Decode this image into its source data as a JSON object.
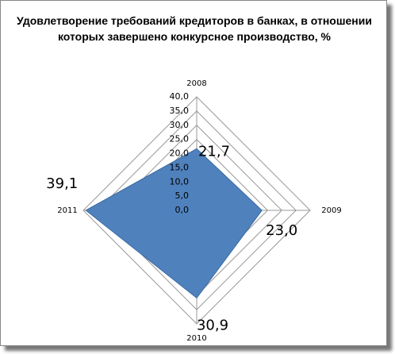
{
  "chart_data": {
    "type": "radar",
    "title": "Удовлетворение требований кредиторов в банках, в отношении которых завершено конкурсное производство, %",
    "categories": [
      "2008",
      "2009",
      "2010",
      "2011"
    ],
    "values": [
      21.7,
      23.0,
      30.9,
      39.1
    ],
    "value_labels": [
      "21,7",
      "23,0",
      "30,9",
      "39,1"
    ],
    "color": "#4f81bd",
    "ylim": [
      0,
      40
    ],
    "yticks": [
      {
        "value": 0,
        "label": "0,0"
      },
      {
        "value": 5,
        "label": "5,0"
      },
      {
        "value": 10,
        "label": "10,0"
      },
      {
        "value": 15,
        "label": "15,0"
      },
      {
        "value": 20,
        "label": "20,0"
      },
      {
        "value": 25,
        "label": "25,0"
      },
      {
        "value": 30,
        "label": "30,0"
      },
      {
        "value": 35,
        "label": "35,0"
      },
      {
        "value": 40,
        "label": "40,0"
      }
    ],
    "grid": true
  }
}
